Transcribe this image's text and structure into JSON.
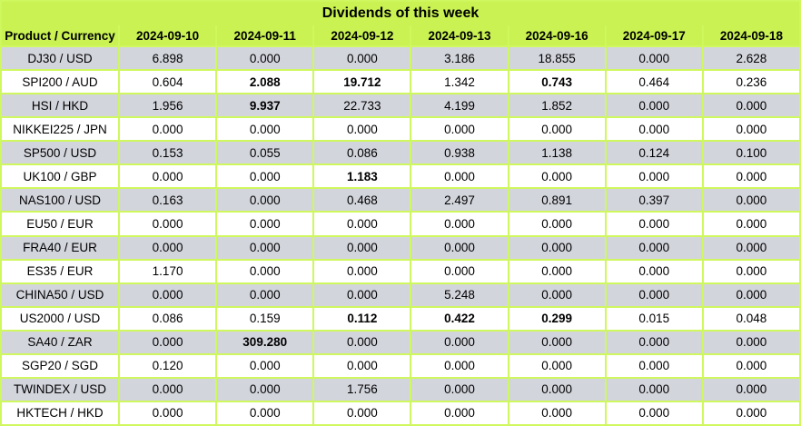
{
  "title": "Dividends of this week",
  "table": {
    "product_header": "Product / Currency",
    "date_headers": [
      "2024-09-10",
      "2024-09-11",
      "2024-09-12",
      "2024-09-13",
      "2024-09-16",
      "2024-09-17",
      "2024-09-18"
    ],
    "rows": [
      {
        "product": "DJ30 / USD",
        "values": [
          "6.898",
          "0.000",
          "0.000",
          "3.186",
          "18.855",
          "0.000",
          "2.628"
        ],
        "bold_cols": []
      },
      {
        "product": "SPI200 / AUD",
        "values": [
          "0.604",
          "2.088",
          "19.712",
          "1.342",
          "0.743",
          "0.464",
          "0.236"
        ],
        "bold_cols": [
          1,
          2,
          4
        ]
      },
      {
        "product": "HSI / HKD",
        "values": [
          "1.956",
          "9.937",
          "22.733",
          "4.199",
          "1.852",
          "0.000",
          "0.000"
        ],
        "bold_cols": [
          1
        ]
      },
      {
        "product": "NIKKEI225 / JPN",
        "values": [
          "0.000",
          "0.000",
          "0.000",
          "0.000",
          "0.000",
          "0.000",
          "0.000"
        ],
        "bold_cols": []
      },
      {
        "product": "SP500 / USD",
        "values": [
          "0.153",
          "0.055",
          "0.086",
          "0.938",
          "1.138",
          "0.124",
          "0.100"
        ],
        "bold_cols": []
      },
      {
        "product": "UK100 / GBP",
        "values": [
          "0.000",
          "0.000",
          "1.183",
          "0.000",
          "0.000",
          "0.000",
          "0.000"
        ],
        "bold_cols": [
          2
        ]
      },
      {
        "product": "NAS100 / USD",
        "values": [
          "0.163",
          "0.000",
          "0.468",
          "2.497",
          "0.891",
          "0.397",
          "0.000"
        ],
        "bold_cols": []
      },
      {
        "product": "EU50 / EUR",
        "values": [
          "0.000",
          "0.000",
          "0.000",
          "0.000",
          "0.000",
          "0.000",
          "0.000"
        ],
        "bold_cols": []
      },
      {
        "product": "FRA40 / EUR",
        "values": [
          "0.000",
          "0.000",
          "0.000",
          "0.000",
          "0.000",
          "0.000",
          "0.000"
        ],
        "bold_cols": []
      },
      {
        "product": "ES35 / EUR",
        "values": [
          "1.170",
          "0.000",
          "0.000",
          "0.000",
          "0.000",
          "0.000",
          "0.000"
        ],
        "bold_cols": []
      },
      {
        "product": "CHINA50 / USD",
        "values": [
          "0.000",
          "0.000",
          "0.000",
          "5.248",
          "0.000",
          "0.000",
          "0.000"
        ],
        "bold_cols": []
      },
      {
        "product": "US2000 / USD",
        "values": [
          "0.086",
          "0.159",
          "0.112",
          "0.422",
          "0.299",
          "0.015",
          "0.048"
        ],
        "bold_cols": [
          2,
          3,
          4
        ]
      },
      {
        "product": "SA40 / ZAR",
        "values": [
          "0.000",
          "309.280",
          "0.000",
          "0.000",
          "0.000",
          "0.000",
          "0.000"
        ],
        "bold_cols": [
          1
        ]
      },
      {
        "product": "SGP20 / SGD",
        "values": [
          "0.120",
          "0.000",
          "0.000",
          "0.000",
          "0.000",
          "0.000",
          "0.000"
        ],
        "bold_cols": []
      },
      {
        "product": "TWINDEX / USD",
        "values": [
          "0.000",
          "0.000",
          "1.756",
          "0.000",
          "0.000",
          "0.000",
          "0.000"
        ],
        "bold_cols": []
      },
      {
        "product": "HKTECH / HKD",
        "values": [
          "0.000",
          "0.000",
          "0.000",
          "0.000",
          "0.000",
          "0.000",
          "0.000"
        ],
        "bold_cols": []
      }
    ]
  },
  "colors": {
    "header_green": "#C9F252",
    "grid_green": "#CFF75E",
    "row_gray": "#D3D5DD",
    "row_white": "#FFFFFF",
    "text_black": "#000000"
  }
}
